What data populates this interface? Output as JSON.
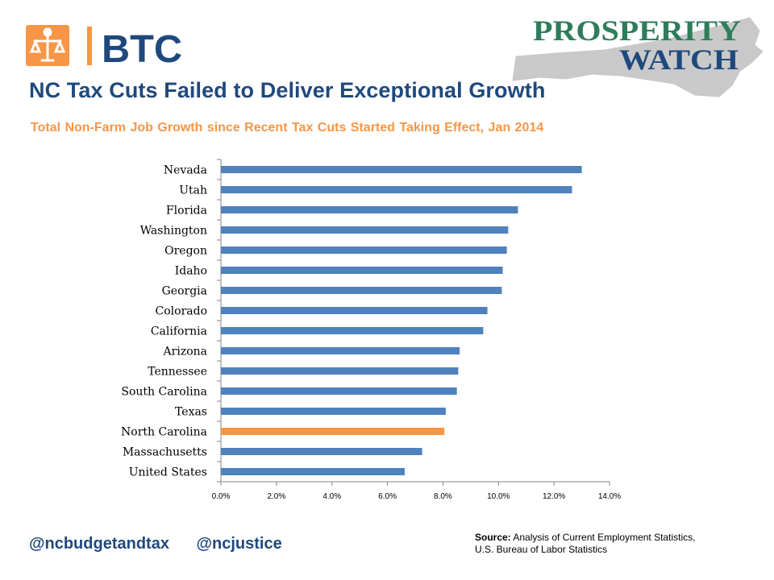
{
  "logos": {
    "btc_text": "BTC",
    "prosperity_line1": "PROSPERITY",
    "prosperity_line2": "WATCH"
  },
  "header": {
    "title": "NC Tax Cuts Failed to Deliver Exceptional Growth",
    "subtitle": "Total Non-Farm Job Growth since Recent Tax Cuts Started Taking Effect, Jan 2014"
  },
  "colors": {
    "bar_default": "#4f81bd",
    "bar_highlight": "#f79646",
    "title": "#1f497d",
    "subtitle": "#f79646"
  },
  "chart_data": {
    "type": "bar",
    "orientation": "horizontal",
    "categories": [
      "Nevada",
      "Utah",
      "Florida",
      "Washington",
      "Oregon",
      "Idaho",
      "Georgia",
      "Colorado",
      "California",
      "Arizona",
      "Tennessee",
      "South Carolina",
      "Texas",
      "North Carolina",
      "Massachusetts",
      "United States"
    ],
    "values": [
      13.0,
      12.65,
      10.7,
      10.35,
      10.3,
      10.15,
      10.12,
      9.6,
      9.45,
      8.6,
      8.55,
      8.5,
      8.1,
      8.05,
      7.25,
      6.62
    ],
    "highlight": "North Carolina",
    "xlim": [
      0,
      14
    ],
    "xticks": [
      "0.0%",
      "2.0%",
      "4.0%",
      "6.0%",
      "8.0%",
      "10.0%",
      "12.0%",
      "14.0%"
    ],
    "grid": false,
    "legend": "none"
  },
  "footer": {
    "handle_1": "@ncbudgetandtax",
    "handle_2": "@ncjustice",
    "source_label": "Source:",
    "source_line1": " Analysis of Current Employment Statistics,",
    "source_line2": "U.S. Bureau of Labor Statistics"
  }
}
